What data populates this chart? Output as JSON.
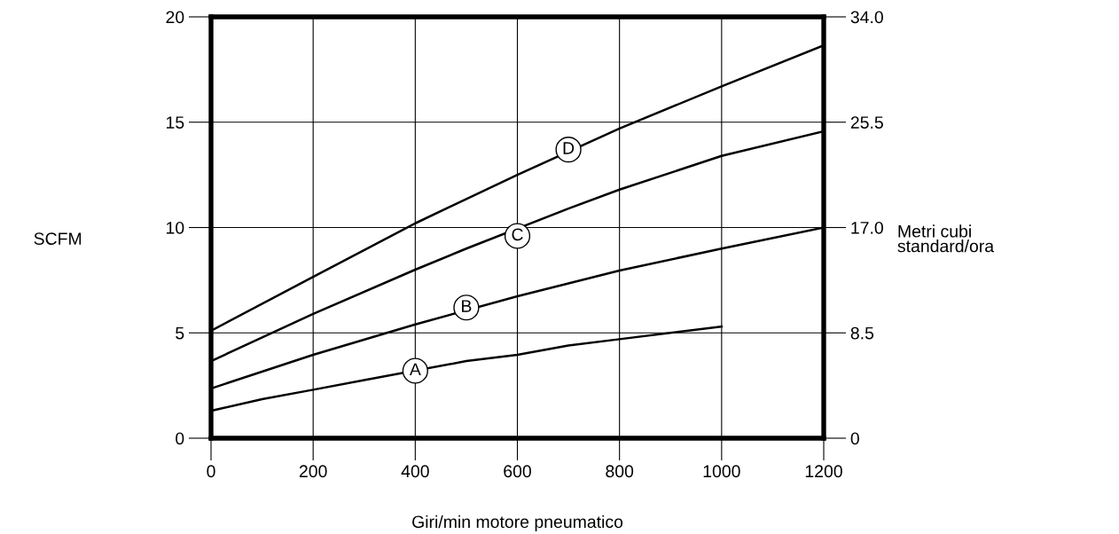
{
  "chart_data": {
    "type": "line",
    "xlabel": "Giri/min motore pneumatico",
    "ylabel": "SCFM",
    "y2label": "Metri cubi\nstandard/ora",
    "x": [
      0,
      200,
      400,
      600,
      800,
      1000,
      1200
    ],
    "series": [
      {
        "color": "#000000",
        "x": [
          0,
          100,
          200,
          300,
          500,
          600,
          700,
          800,
          1000
        ],
        "values": [
          1.3,
          1.85,
          2.3,
          2.76,
          3.66,
          3.96,
          4.4,
          4.7,
          5.3
        ]
      },
      {
        "color": "#000000",
        "values": [
          2.36,
          3.96,
          5.4,
          6.74,
          7.96,
          9.0,
          10.0
        ]
      },
      {
        "color": "#000000",
        "x": [
          0,
          200,
          400,
          500,
          700,
          800,
          1000,
          1200
        ],
        "values": [
          3.66,
          5.9,
          8.0,
          9.0,
          10.9,
          11.8,
          13.4,
          14.57
        ]
      },
      {
        "color": "#000000",
        "values": [
          5.1,
          7.66,
          10.2,
          12.5,
          14.7,
          16.7,
          18.65
        ]
      }
    ],
    "annotations": [
      {
        "text": "A",
        "x": 400,
        "y": 3.2
      },
      {
        "text": "B",
        "x": 500,
        "y": 6.2
      },
      {
        "text": "C",
        "x": 600,
        "y": 9.6
      },
      {
        "text": "D",
        "x": 700,
        "y": 13.7
      }
    ],
    "xlim": [
      0,
      1200
    ],
    "xticks": [
      0,
      200,
      400,
      600,
      800,
      1000,
      1200
    ],
    "ylim": [
      0,
      20
    ],
    "yticks": [
      0,
      5,
      10,
      15,
      20
    ],
    "y2lim": [
      0,
      34
    ],
    "y2ticks": [
      0,
      {
        "value": 8.5,
        "label": "8.5"
      },
      {
        "value": 17,
        "label": "17.0"
      },
      {
        "value": 25.5,
        "label": "25.5"
      },
      {
        "value": 34,
        "label": "34.0"
      }
    ],
    "grid": true,
    "legend": false,
    "marker": "none",
    "line_style": "solid"
  }
}
